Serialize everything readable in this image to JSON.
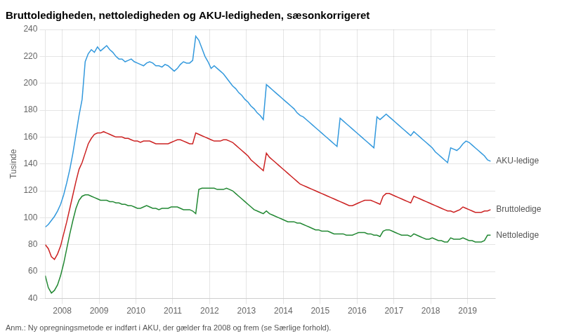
{
  "chart_data": {
    "type": "line",
    "title": "Bruttoledigheden, nettoledigheden og AKU-ledigheden, sæsonkorrigeret",
    "ylabel": "Tusinde",
    "footnote": "Anm.: Ny opregningsmetode er indført i AKU, der gælder fra 2008 og frem (se Særlige forhold).",
    "grid": true,
    "xlim": [
      2007.54,
      2019.75
    ],
    "xticks": [
      2008,
      2009,
      2010,
      2011,
      2012,
      2013,
      2014,
      2015,
      2016,
      2017,
      2018,
      2019
    ],
    "ylim": [
      40,
      240
    ],
    "yticks": [
      40,
      60,
      80,
      100,
      120,
      140,
      160,
      180,
      200,
      220,
      240
    ],
    "x": [
      2007.54,
      2007.6233,
      2007.7067,
      2007.79,
      2007.8733,
      2007.9567,
      2008.04,
      2008.1233,
      2008.2067,
      2008.29,
      2008.3733,
      2008.4567,
      2008.54,
      2008.6233,
      2008.7067,
      2008.79,
      2008.8733,
      2008.9567,
      2009.04,
      2009.1233,
      2009.2067,
      2009.29,
      2009.3733,
      2009.4567,
      2009.54,
      2009.6233,
      2009.7067,
      2009.79,
      2009.8733,
      2009.9567,
      2010.04,
      2010.1233,
      2010.2067,
      2010.29,
      2010.3733,
      2010.4567,
      2010.54,
      2010.6233,
      2010.7067,
      2010.79,
      2010.8733,
      2010.9567,
      2011.04,
      2011.1233,
      2011.2067,
      2011.29,
      2011.3733,
      2011.4567,
      2011.54,
      2011.6233,
      2011.7067,
      2011.79,
      2011.8733,
      2011.9567,
      2012.04,
      2012.1233,
      2012.2067,
      2012.29,
      2012.3733,
      2012.4567,
      2012.54,
      2012.6233,
      2012.7067,
      2012.79,
      2012.8733,
      2012.9567,
      2013.04,
      2013.1233,
      2013.2067,
      2013.29,
      2013.3733,
      2013.4567,
      2013.54,
      2013.6233,
      2013.7067,
      2013.79,
      2013.8733,
      2013.9567,
      2014.04,
      2014.1233,
      2014.2067,
      2014.29,
      2014.3733,
      2014.4567,
      2014.54,
      2014.6233,
      2014.7067,
      2014.79,
      2014.8733,
      2014.9567,
      2015.04,
      2015.1233,
      2015.2067,
      2015.29,
      2015.3733,
      2015.4567,
      2015.54,
      2015.6233,
      2015.7067,
      2015.79,
      2015.8733,
      2015.9567,
      2016.04,
      2016.1233,
      2016.2067,
      2016.29,
      2016.3733,
      2016.4567,
      2016.54,
      2016.6233,
      2016.7067,
      2016.79,
      2016.8733,
      2016.9567,
      2017.04,
      2017.1233,
      2017.2067,
      2017.29,
      2017.3733,
      2017.4567,
      2017.54,
      2017.6233,
      2017.7067,
      2017.79,
      2017.8733,
      2017.9567,
      2018.04,
      2018.1233,
      2018.2067,
      2018.29,
      2018.3733,
      2018.4567,
      2018.54,
      2018.6233,
      2018.7067,
      2018.79,
      2018.8733,
      2018.9567,
      2019.04,
      2019.1233,
      2019.2067,
      2019.29,
      2019.3733,
      2019.4567,
      2019.54,
      2019.6233
    ],
    "series": [
      {
        "name": "AKU-ledige",
        "color": "#3399dd",
        "values": [
          93,
          95,
          98,
          101,
          105,
          110,
          117,
          126,
          136,
          148,
          162,
          176,
          188,
          216,
          222,
          225,
          223,
          227,
          224,
          226,
          228,
          225,
          223,
          220,
          218,
          218,
          216,
          217,
          218,
          216,
          215,
          214,
          213,
          215,
          216,
          215,
          213,
          213,
          212,
          214,
          213,
          211,
          209,
          211,
          214,
          216,
          215,
          215,
          217,
          235,
          232,
          226,
          220,
          216,
          211,
          213,
          211,
          209,
          207,
          204,
          201,
          198,
          196,
          193,
          191,
          188,
          186,
          183,
          181,
          178,
          176,
          173,
          199,
          197,
          195,
          193,
          191,
          189,
          187,
          185,
          183,
          181,
          178,
          176,
          175,
          173,
          171,
          169,
          167,
          165,
          163,
          161,
          159,
          157,
          155,
          153,
          174,
          172,
          170,
          168,
          166,
          164,
          162,
          160,
          158,
          156,
          154,
          152,
          175,
          173,
          175,
          177,
          175,
          173,
          171,
          169,
          167,
          165,
          163,
          161,
          164,
          162,
          160,
          158,
          156,
          154,
          152,
          149,
          147,
          145,
          143,
          141,
          152,
          151,
          150,
          152,
          155,
          157,
          156,
          154,
          152,
          150,
          148,
          146,
          143,
          142
        ]
      },
      {
        "name": "Bruttoledige",
        "color": "#cc2222",
        "values": [
          80,
          77,
          71,
          69,
          73,
          79,
          88,
          97,
          107,
          117,
          127,
          136,
          141,
          148,
          155,
          159,
          162,
          163,
          163,
          164,
          163,
          162,
          161,
          160,
          160,
          160,
          159,
          159,
          158,
          157,
          157,
          156,
          157,
          157,
          157,
          156,
          155,
          155,
          155,
          155,
          155,
          156,
          157,
          158,
          158,
          157,
          156,
          155,
          155,
          163,
          162,
          161,
          160,
          159,
          158,
          157,
          157,
          157,
          158,
          158,
          157,
          156,
          154,
          152,
          150,
          148,
          146,
          143,
          141,
          139,
          137,
          135,
          148,
          145,
          143,
          141,
          139,
          137,
          135,
          133,
          131,
          129,
          127,
          125,
          124,
          123,
          122,
          121,
          120,
          119,
          118,
          117,
          116,
          115,
          114,
          113,
          112,
          111,
          110,
          109,
          109,
          110,
          111,
          112,
          113,
          113,
          113,
          112,
          111,
          110,
          116,
          118,
          118,
          117,
          116,
          115,
          114,
          113,
          112,
          111,
          116,
          115,
          114,
          113,
          112,
          111,
          110,
          109,
          108,
          107,
          106,
          105,
          105,
          104,
          105,
          106,
          108,
          107,
          106,
          105,
          104,
          104,
          104,
          105,
          105,
          106
        ]
      },
      {
        "name": "Nettoledige",
        "color": "#228833",
        "values": [
          57,
          48,
          44,
          46,
          50,
          57,
          66,
          77,
          88,
          98,
          107,
          113,
          116,
          117,
          117,
          116,
          115,
          114,
          113,
          113,
          113,
          112,
          112,
          111,
          111,
          110,
          110,
          109,
          109,
          108,
          107,
          107,
          108,
          109,
          108,
          107,
          107,
          106,
          107,
          107,
          107,
          108,
          108,
          108,
          107,
          106,
          106,
          106,
          105,
          103,
          121,
          122,
          122,
          122,
          122,
          122,
          121,
          121,
          121,
          122,
          121,
          120,
          118,
          116,
          114,
          112,
          110,
          108,
          106,
          105,
          104,
          103,
          105,
          103,
          102,
          101,
          100,
          99,
          98,
          97,
          97,
          97,
          96,
          96,
          95,
          94,
          93,
          92,
          91,
          91,
          90,
          90,
          90,
          89,
          88,
          88,
          88,
          88,
          87,
          87,
          87,
          88,
          89,
          89,
          89,
          88,
          88,
          87,
          87,
          86,
          90,
          91,
          91,
          90,
          89,
          88,
          87,
          87,
          87,
          86,
          88,
          87,
          86,
          85,
          84,
          84,
          85,
          84,
          83,
          83,
          82,
          82,
          85,
          84,
          84,
          84,
          85,
          84,
          83,
          83,
          82,
          82,
          82,
          83,
          87,
          87
        ]
      }
    ]
  }
}
